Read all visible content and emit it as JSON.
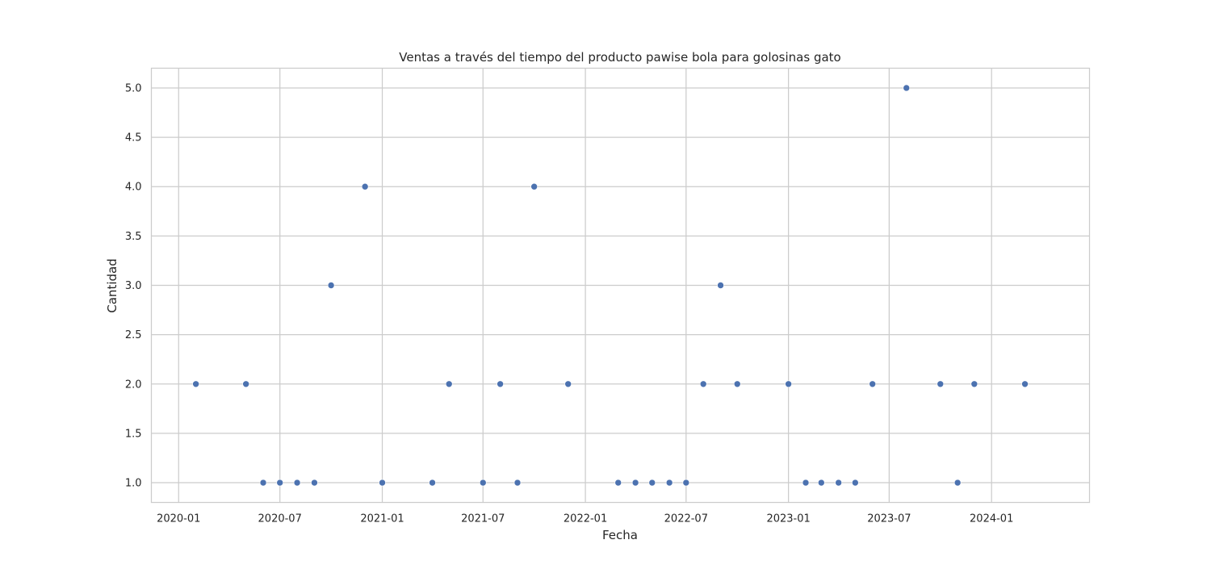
{
  "chart_data": {
    "type": "scatter",
    "title": "Ventas a través del tiempo del producto pawise bola para golosinas gato",
    "xlabel": "Fecha",
    "ylabel": "Cantidad",
    "xlim": [
      "2019-11-13",
      "2024-06-25"
    ],
    "ylim": [
      0.8,
      5.2
    ],
    "x_ticks": [
      "2020-01",
      "2020-07",
      "2021-01",
      "2021-07",
      "2022-01",
      "2022-07",
      "2023-01",
      "2023-07",
      "2024-01"
    ],
    "y_ticks": [
      "1.0",
      "1.5",
      "2.0",
      "2.5",
      "3.0",
      "3.5",
      "4.0",
      "4.5",
      "5.0"
    ],
    "grid": true,
    "marker_color": "#4c72b0",
    "grid_color": "#cccccc",
    "points": [
      {
        "x": "2020-02-01",
        "y": 2
      },
      {
        "x": "2020-05-01",
        "y": 2
      },
      {
        "x": "2020-06-01",
        "y": 1
      },
      {
        "x": "2020-07-01",
        "y": 1
      },
      {
        "x": "2020-08-01",
        "y": 1
      },
      {
        "x": "2020-09-01",
        "y": 1
      },
      {
        "x": "2020-10-01",
        "y": 3
      },
      {
        "x": "2020-12-01",
        "y": 4
      },
      {
        "x": "2021-01-01",
        "y": 1
      },
      {
        "x": "2021-04-01",
        "y": 1
      },
      {
        "x": "2021-05-01",
        "y": 2
      },
      {
        "x": "2021-07-01",
        "y": 1
      },
      {
        "x": "2021-08-01",
        "y": 2
      },
      {
        "x": "2021-09-01",
        "y": 1
      },
      {
        "x": "2021-10-01",
        "y": 4
      },
      {
        "x": "2021-12-01",
        "y": 2
      },
      {
        "x": "2022-03-01",
        "y": 1
      },
      {
        "x": "2022-04-01",
        "y": 1
      },
      {
        "x": "2022-05-01",
        "y": 1
      },
      {
        "x": "2022-06-01",
        "y": 1
      },
      {
        "x": "2022-07-01",
        "y": 1
      },
      {
        "x": "2022-08-01",
        "y": 2
      },
      {
        "x": "2022-09-01",
        "y": 3
      },
      {
        "x": "2022-10-01",
        "y": 2
      },
      {
        "x": "2023-01-01",
        "y": 2
      },
      {
        "x": "2023-02-01",
        "y": 1
      },
      {
        "x": "2023-03-01",
        "y": 1
      },
      {
        "x": "2023-04-01",
        "y": 1
      },
      {
        "x": "2023-05-01",
        "y": 1
      },
      {
        "x": "2023-06-01",
        "y": 2
      },
      {
        "x": "2023-08-01",
        "y": 5
      },
      {
        "x": "2023-10-01",
        "y": 2
      },
      {
        "x": "2023-11-01",
        "y": 1
      },
      {
        "x": "2023-12-01",
        "y": 2
      },
      {
        "x": "2024-03-01",
        "y": 2
      }
    ]
  }
}
